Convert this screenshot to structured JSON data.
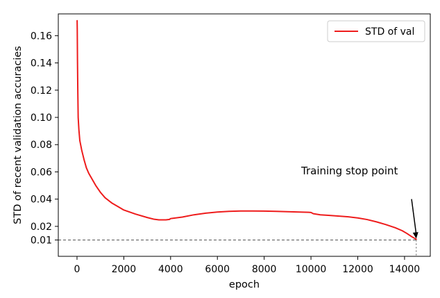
{
  "chart_data": {
    "type": "line",
    "xlabel": "epoch",
    "ylabel": "STD of recent validation accuracies",
    "xlim": [
      -800,
      15100
    ],
    "ylim": [
      -0.002,
      0.176
    ],
    "x_ticks": [
      0,
      2000,
      4000,
      6000,
      8000,
      10000,
      12000,
      14000
    ],
    "x_tick_labels": [
      "0",
      "2000",
      "4000",
      "6000",
      "8000",
      "10000",
      "12000",
      "14000"
    ],
    "y_ticks": [
      0.01,
      0.02,
      0.04,
      0.06,
      0.08,
      0.1,
      0.12,
      0.14,
      0.16
    ],
    "y_tick_labels": [
      "0.01",
      "0.02",
      "0.04",
      "0.06",
      "0.08",
      "0.10",
      "0.12",
      "0.14",
      "0.16"
    ],
    "grid": false,
    "legend": {
      "position": "top-right",
      "entries": [
        "STD of val"
      ]
    },
    "series": [
      {
        "name": "STD of val",
        "color": "#ee1c1c",
        "x": [
          5,
          10,
          20,
          35,
          50,
          80,
          120,
          200,
          300,
          400,
          500,
          600,
          700,
          800,
          1000,
          1200,
          1500,
          1800,
          2000,
          2500,
          3000,
          3300,
          3500,
          3800,
          3950,
          4000,
          4100,
          4500,
          5000,
          5500,
          6000,
          6500,
          7000,
          7500,
          8000,
          8500,
          9000,
          9500,
          9900,
          10000,
          10100,
          10400,
          10800,
          11200,
          11600,
          12000,
          12400,
          12800,
          13200,
          13600,
          13900,
          14100,
          14300,
          14500
        ],
        "y": [
          0.171,
          0.165,
          0.142,
          0.118,
          0.1,
          0.091,
          0.083,
          0.076,
          0.069,
          0.063,
          0.059,
          0.056,
          0.053,
          0.05,
          0.045,
          0.041,
          0.037,
          0.034,
          0.032,
          0.029,
          0.0265,
          0.0252,
          0.0248,
          0.0248,
          0.0251,
          0.0257,
          0.0259,
          0.0268,
          0.0285,
          0.0297,
          0.0305,
          0.031,
          0.0313,
          0.0313,
          0.0312,
          0.031,
          0.0308,
          0.0305,
          0.0303,
          0.0302,
          0.0293,
          0.0285,
          0.028,
          0.0275,
          0.027,
          0.0262,
          0.025,
          0.0233,
          0.0213,
          0.019,
          0.0168,
          0.0148,
          0.0125,
          0.0105
        ]
      }
    ],
    "reference_line": {
      "y": 0.01,
      "x_end": 14500,
      "style": "dashed",
      "color": "#555555"
    },
    "annotation": {
      "text": "Training stop point",
      "arrow_tip": [
        14500,
        0.011
      ],
      "arrow_tail": [
        14300,
        0.04
      ]
    }
  }
}
